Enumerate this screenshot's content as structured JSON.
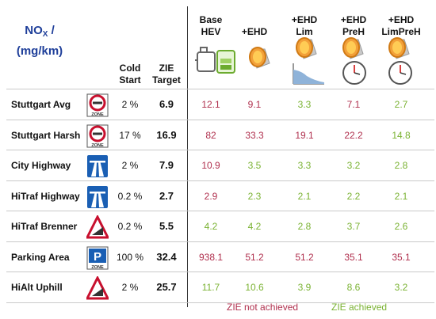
{
  "header": {
    "title_line1": "NO",
    "title_sub": "X",
    "title_line2": " /",
    "title_line3": "(mg/km)",
    "cold_start": [
      "Cold",
      "Start"
    ],
    "zie_target": [
      "ZIE",
      "Target"
    ],
    "columns": [
      {
        "lines": [
          "Base",
          "HEV"
        ],
        "icon": "engine-battery-icon"
      },
      {
        "lines": [
          "",
          "+EHD"
        ],
        "icon": "catalyst-icon"
      },
      {
        "lines": [
          "+EHD",
          "Lim"
        ],
        "icon": "catalyst-limit-curve-icon"
      },
      {
        "lines": [
          "+EHD",
          "PreH"
        ],
        "icon": "catalyst-clock-icon"
      },
      {
        "lines": [
          "+EHD",
          "LimPreH"
        ],
        "icon": "catalyst-clock-icon"
      }
    ]
  },
  "rows": [
    {
      "name": "Stuttgart Avg",
      "sign": "zone-sign",
      "sign_text": "ZONE",
      "cold_start": "2 %",
      "target": "6.9",
      "values": [
        "12.1",
        "9.1",
        "3.3",
        "7.1",
        "2.7"
      ],
      "status": [
        "bad",
        "bad",
        "good",
        "bad",
        "good"
      ]
    },
    {
      "name": "Stuttgart Harsh",
      "sign": "zone-sign",
      "sign_text": "ZONE",
      "cold_start": "17 %",
      "target": "16.9",
      "values": [
        "82",
        "33.3",
        "19.1",
        "22.2",
        "14.8"
      ],
      "status": [
        "bad",
        "bad",
        "bad",
        "bad",
        "good"
      ]
    },
    {
      "name": "City Highway",
      "sign": "highway-sign",
      "cold_start": "2 %",
      "target": "7.9",
      "values": [
        "10.9",
        "3.5",
        "3.3",
        "3.2",
        "2.8"
      ],
      "status": [
        "bad",
        "good",
        "good",
        "good",
        "good"
      ]
    },
    {
      "name": "HiTraf Highway",
      "sign": "highway-sign",
      "cold_start": "0.2 %",
      "target": "2.7",
      "values": [
        "2.9",
        "2.3",
        "2.1",
        "2.2",
        "2.1"
      ],
      "status": [
        "bad",
        "good",
        "good",
        "good",
        "good"
      ]
    },
    {
      "name": "HiTraf Brenner",
      "sign": "incline-sign",
      "cold_start": "0.2 %",
      "target": "5.5",
      "values": [
        "4.2",
        "4.2",
        "2.8",
        "3.7",
        "2.6"
      ],
      "status": [
        "good",
        "good",
        "good",
        "good",
        "good"
      ]
    },
    {
      "name": "Parking Area",
      "sign": "parking-zone-sign",
      "sign_text": "ZONE",
      "sign_letter": "P",
      "cold_start": "100 %",
      "target": "32.4",
      "values": [
        "938.1",
        "51.2",
        "51.2",
        "35.1",
        "35.1"
      ],
      "status": [
        "bad",
        "bad",
        "bad",
        "bad",
        "bad"
      ]
    },
    {
      "name": "HiAlt Uphill",
      "sign": "incline-sign",
      "cold_start": "2 %",
      "target": "25.7",
      "values": [
        "11.7",
        "10.6",
        "3.9",
        "8.6",
        "3.2"
      ],
      "status": [
        "good",
        "good",
        "good",
        "good",
        "good"
      ]
    }
  ],
  "legend": {
    "not_achieved": "ZIE not achieved",
    "achieved": "ZIE achieved"
  },
  "colors": {
    "not_achieved": "#b0304e",
    "achieved": "#7ab232",
    "title": "#1f3f9a",
    "sign_blue": "#1a5fb4",
    "sign_red": "#c8102e"
  }
}
